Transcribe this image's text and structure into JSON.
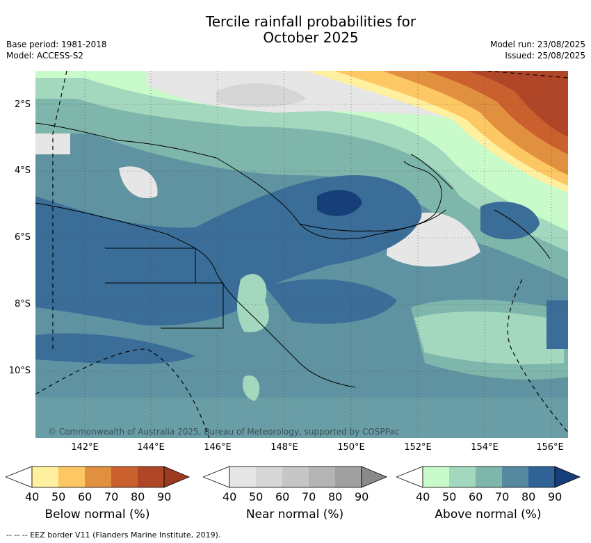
{
  "title_line1": "Tercile rainfall probabilities for",
  "title_line2": "October 2025",
  "base_period": "Base period: 1981-2018",
  "model": "Model: ACCESS-S2",
  "model_run": "Model run: 23/08/2025",
  "issued": "Issued: 25/08/2025",
  "lat_labels": [
    "2°S",
    "4°S",
    "6°S",
    "8°S",
    "10°S"
  ],
  "lon_labels": [
    "142°E",
    "144°E",
    "146°E",
    "148°E",
    "150°E",
    "152°E",
    "154°E",
    "156°E"
  ],
  "copyright": "© Commonwealth of Australia 2025, Bureau of Meteorology, supported by COSPPac",
  "colorbars": [
    {
      "title": "Below normal (%)",
      "ticks": [
        "40",
        "50",
        "60",
        "70",
        "80",
        "90"
      ],
      "colors": [
        "#fff0a0",
        "#fdc863",
        "#e0903e",
        "#c9602e",
        "#b04628",
        "#9c3a1f"
      ]
    },
    {
      "title": "Near normal (%)",
      "ticks": [
        "40",
        "50",
        "60",
        "70",
        "80",
        "90"
      ],
      "colors": [
        "#e6e6e6",
        "#d6d6d6",
        "#c6c6c6",
        "#b4b4b4",
        "#a0a0a0",
        "#8a8a8a"
      ]
    },
    {
      "title": "Above normal (%)",
      "ticks": [
        "40",
        "50",
        "60",
        "70",
        "80",
        "90"
      ],
      "colors": [
        "#c9fac9",
        "#a3d8bf",
        "#7fb6ab",
        "#5589a0",
        "#2f6296",
        "#163e78"
      ]
    }
  ],
  "footer": "-- -- -- EEZ border V11 (Flanders Marine Institute, 2019)."
}
